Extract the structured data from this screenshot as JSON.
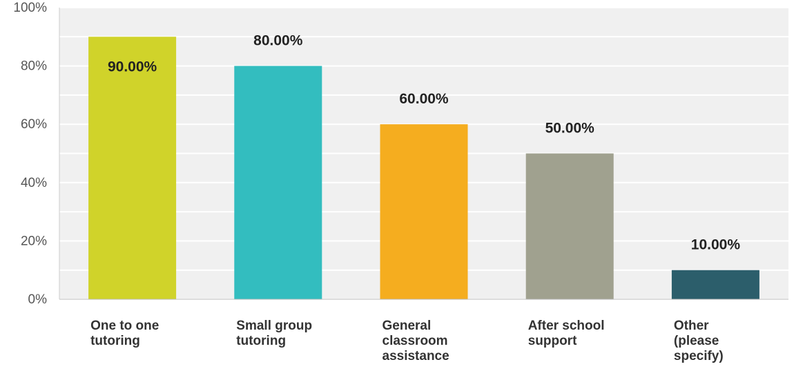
{
  "chart_data": {
    "type": "bar",
    "categories": [
      [
        "One to one",
        "tutoring"
      ],
      [
        "Small group",
        "tutoring"
      ],
      [
        "General",
        "classroom",
        "assistance"
      ],
      [
        "After school",
        "support"
      ],
      [
        "Other",
        "(please",
        "specify)"
      ]
    ],
    "values": [
      90,
      80,
      60,
      50,
      10
    ],
    "data_labels": [
      "90.00%",
      "80.00%",
      "60.00%",
      "50.00%",
      "10.00%"
    ],
    "colors": [
      "#d0d32a",
      "#33bdbf",
      "#f5ad1f",
      "#a0a18f",
      "#2c5e6b"
    ],
    "yticks": [
      "0%",
      "20%",
      "40%",
      "60%",
      "80%",
      "100%"
    ],
    "ylim": [
      0,
      100
    ],
    "grid": true,
    "background": "#f0f0f0"
  }
}
